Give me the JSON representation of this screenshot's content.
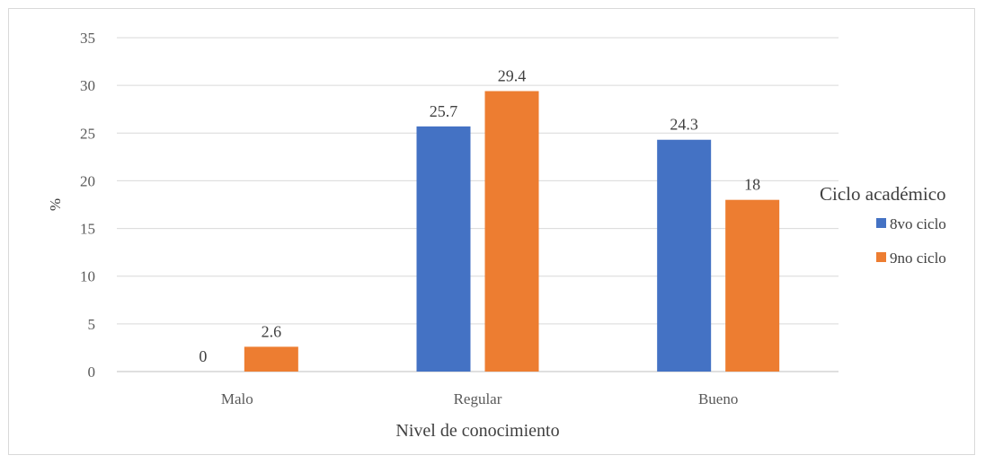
{
  "chart_data": {
    "type": "bar",
    "categories": [
      "Malo",
      "Regular",
      "Bueno"
    ],
    "series": [
      {
        "name": "8vo ciclo",
        "values": [
          0,
          25.7,
          24.3
        ],
        "color": "#4472C4"
      },
      {
        "name": "9no ciclo",
        "values": [
          2.6,
          29.4,
          18
        ],
        "color": "#ED7D31"
      }
    ],
    "data_labels": [
      [
        "0",
        "25.7",
        "24.3"
      ],
      [
        "2.6",
        "29.4",
        "18"
      ]
    ],
    "title": "",
    "xlabel": "Nivel de conocimiento",
    "ylabel": "%",
    "ylim": [
      0,
      35
    ],
    "yticks": [
      "0",
      "5",
      "10",
      "15",
      "20",
      "25",
      "30",
      "35"
    ],
    "grid": true,
    "legend": {
      "title": "Ciclo académico",
      "position": "right"
    }
  }
}
